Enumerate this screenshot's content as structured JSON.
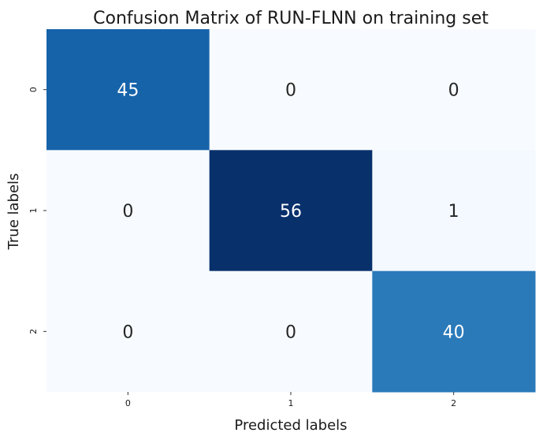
{
  "chart_data": {
    "type": "heatmap",
    "title": "Confusion Matrix of RUN-FLNN on training set",
    "xlabel": "Predicted labels",
    "ylabel": "True labels",
    "x_categories": [
      "0",
      "1",
      "2"
    ],
    "y_categories": [
      "0",
      "1",
      "2"
    ],
    "values": [
      [
        45,
        0,
        0
      ],
      [
        0,
        56,
        1
      ],
      [
        0,
        0,
        40
      ]
    ],
    "colormap": "Blues",
    "colorbar": false,
    "grid": false
  }
}
